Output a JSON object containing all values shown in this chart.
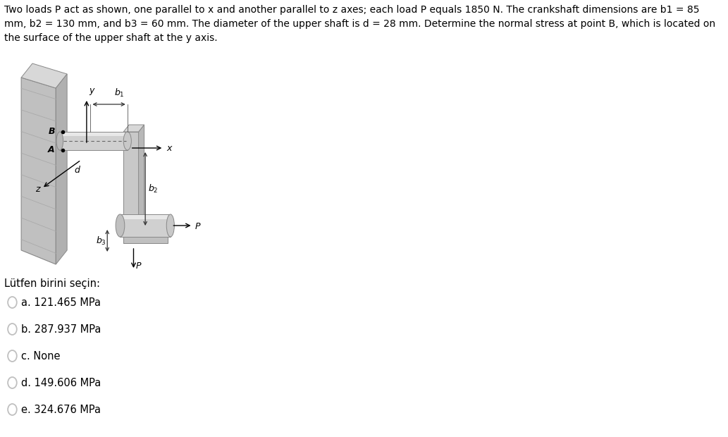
{
  "title_text": "Two loads P act as shown, one parallel to x and another parallel to z axes; each load P equals 1850 N. The crankshaft dimensions are b1 = 85\nmm, b2 = 130 mm, and b3 = 60 mm. The diameter of the upper shaft is d = 28 mm. Determine the normal stress at point B, which is located on\nthe surface of the upper shaft at the y axis.",
  "question_label": "Lütfen birini seçin:",
  "options": [
    "a. 121.465 MPa",
    "b. 287.937 MPa",
    "c. None",
    "d. 149.606 MPa",
    "e. 324.676 MPa"
  ],
  "bg_color": "#ffffff",
  "text_color": "#000000",
  "title_fontsize": 10.0,
  "option_fontsize": 10.5,
  "question_fontsize": 10.5,
  "wall_face_color": "#c8c8c8",
  "wall_edge_color": "#888888",
  "shaft_light": "#d8d8d8",
  "shaft_mid": "#c0c0c0",
  "shaft_dark": "#a8a8a8",
  "crank_color": "#b8b8b8",
  "arrow_color": "#333333",
  "dim_color": "#333333"
}
